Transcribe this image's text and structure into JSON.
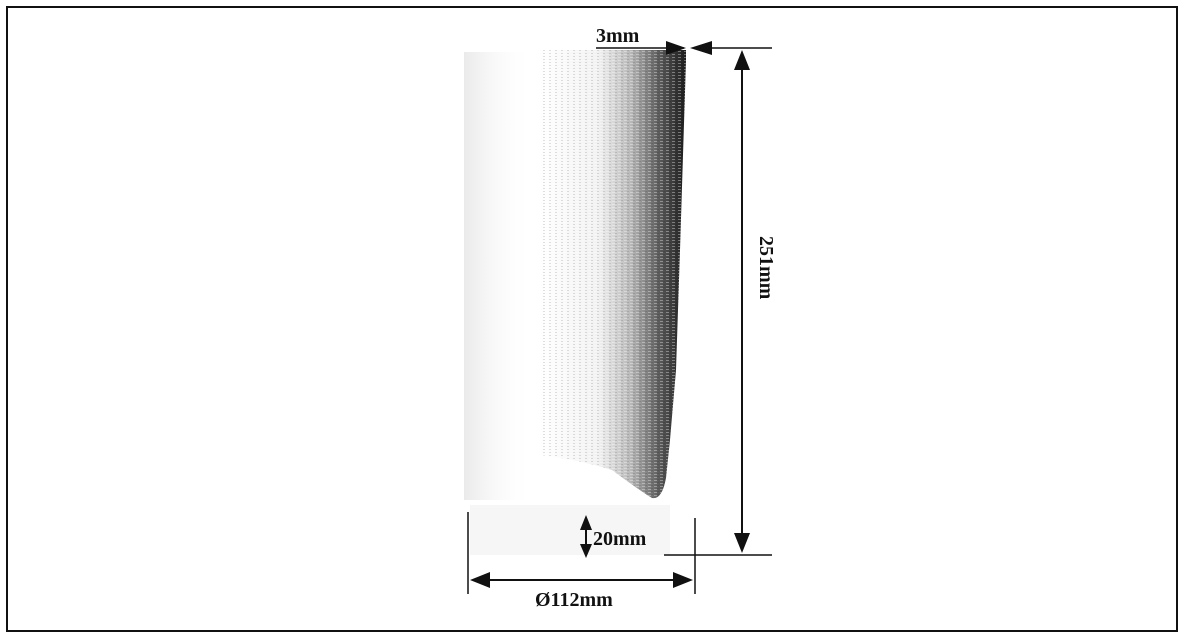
{
  "figure": {
    "dimensions": {
      "wall_thickness": "3mm",
      "height": "251mm",
      "bottom_gap": "20mm",
      "diameter": "Ø112mm"
    }
  }
}
